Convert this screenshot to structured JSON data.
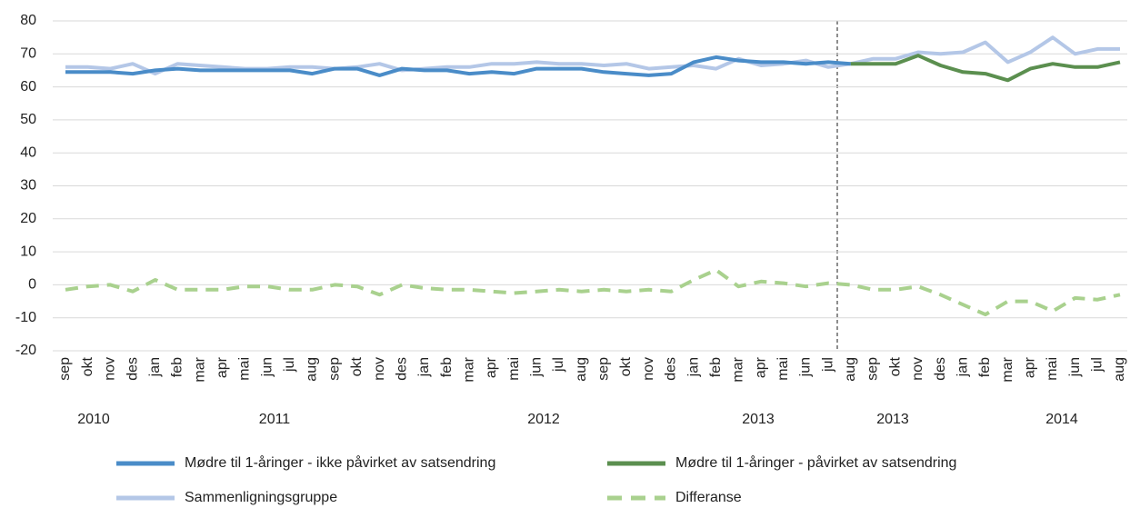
{
  "chart_data": {
    "type": "line",
    "categories": [
      "sep",
      "okt",
      "nov",
      "des",
      "jan",
      "feb",
      "mar",
      "apr",
      "mai",
      "jun",
      "jul",
      "aug",
      "sep",
      "okt",
      "nov",
      "des",
      "jan",
      "feb",
      "mar",
      "apr",
      "mai",
      "jun",
      "jul",
      "aug",
      "sep",
      "okt",
      "nov",
      "des",
      "jan",
      "feb",
      "mar",
      "apr",
      "mai",
      "jun",
      "jul",
      "aug",
      "sep",
      "okt",
      "nov",
      "des",
      "jan",
      "feb",
      "mar",
      "apr",
      "mai",
      "jun",
      "jul",
      "aug"
    ],
    "year_labels": [
      "2010",
      "2011",
      "2012",
      "2013",
      "2013",
      "2014"
    ],
    "ylim": [
      -20,
      80
    ],
    "yticks": [
      -20,
      -10,
      0,
      10,
      20,
      30,
      40,
      50,
      60,
      70,
      80
    ],
    "grid": true,
    "series": [
      {
        "name": "Mødre til 1-åringer - ikke påvirket av satsendring",
        "color": "#4a8cc8",
        "dash": false,
        "values": [
          64.5,
          64.5,
          64.5,
          64,
          65,
          65.5,
          65,
          65,
          65,
          65,
          65,
          64,
          65.5,
          65.5,
          63.5,
          65.5,
          65,
          65,
          64,
          64.5,
          64,
          65.5,
          65.5,
          65.5,
          64.5,
          64,
          63.5,
          64,
          67.5,
          69,
          68,
          67.5,
          67.5,
          67,
          67.5,
          67,
          null,
          null,
          null,
          null,
          null,
          null,
          null,
          null,
          null,
          null,
          null,
          null
        ]
      },
      {
        "name": "Mødre til 1-åringer - påvirket av satsendring",
        "color": "#5b8f4f",
        "dash": false,
        "values": [
          null,
          null,
          null,
          null,
          null,
          null,
          null,
          null,
          null,
          null,
          null,
          null,
          null,
          null,
          null,
          null,
          null,
          null,
          null,
          null,
          null,
          null,
          null,
          null,
          null,
          null,
          null,
          null,
          null,
          null,
          null,
          null,
          null,
          null,
          null,
          67,
          67,
          67,
          69.5,
          66.5,
          64.5,
          64,
          62,
          65.5,
          67,
          66,
          66,
          67.5
        ]
      },
      {
        "name": "Sammenligningsgruppe",
        "color": "#b4c7e7",
        "dash": false,
        "values": [
          66,
          66,
          65.5,
          67,
          64,
          67,
          66.5,
          66,
          65.5,
          65.5,
          66,
          66,
          65.5,
          66,
          67,
          65,
          65.5,
          66,
          66,
          67,
          67,
          67.5,
          67,
          67,
          66.5,
          67,
          65.5,
          66,
          66.5,
          65.5,
          68.5,
          66.5,
          67,
          68,
          66,
          67,
          68.5,
          68.5,
          70.5,
          70,
          70.5,
          73.5,
          67.5,
          70.5,
          75,
          70,
          71.5,
          71.5
        ]
      },
      {
        "name": "Differanse",
        "color": "#a9d18e",
        "dash": true,
        "values": [
          -1.5,
          -0.5,
          0,
          -2,
          1.5,
          -1.5,
          -1.5,
          -1.5,
          -0.5,
          -0.5,
          -1.5,
          -1.5,
          0,
          -0.5,
          -3,
          0,
          -1,
          -1.5,
          -1.5,
          -2,
          -2.5,
          -2,
          -1.5,
          -2,
          -1.5,
          -2,
          -1.5,
          -2,
          1.5,
          4.5,
          -0.5,
          1,
          0.5,
          -0.5,
          0.5,
          0,
          -1.5,
          -1.5,
          -0.5,
          -3,
          -6,
          -9,
          -5,
          -5,
          -8,
          -4,
          -4.5,
          -3
        ]
      }
    ]
  }
}
